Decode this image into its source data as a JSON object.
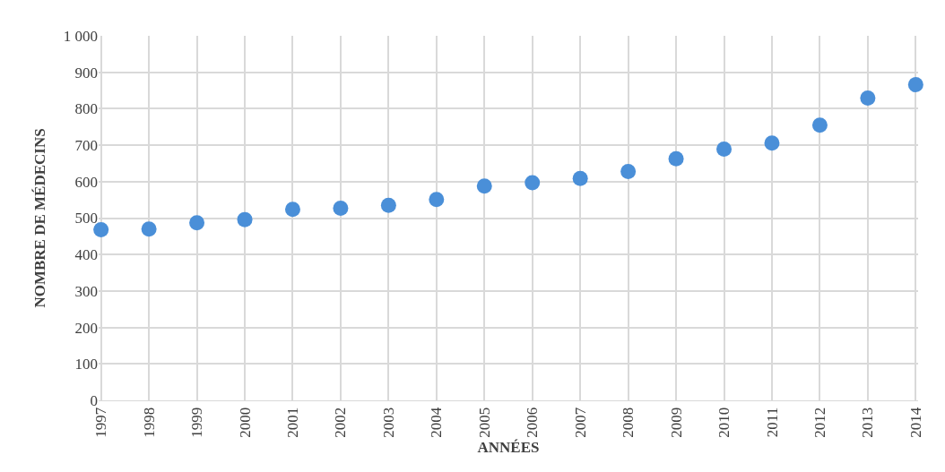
{
  "chart_data": {
    "type": "scatter",
    "xlabel": "ANNÉES",
    "ylabel": "NOMBRE DE MÉDECINS",
    "categories": [
      "1997",
      "1998",
      "1999",
      "2000",
      "2001",
      "2002",
      "2003",
      "2004",
      "2005",
      "2006",
      "2007",
      "2008",
      "2009",
      "2010",
      "2011",
      "2012",
      "2013",
      "2014"
    ],
    "series": [
      {
        "color": "#4a8fd8",
        "values": [
          468,
          470,
          487,
          496,
          524,
          527,
          535,
          551,
          588,
          597,
          609,
          628,
          663,
          689,
          706,
          755,
          829,
          866
        ]
      }
    ],
    "ylim": [
      0,
      1000
    ],
    "yticks": [
      0,
      100,
      200,
      300,
      400,
      500,
      600,
      700,
      800,
      900,
      {
        "value": 1000,
        "label": "1 000"
      }
    ],
    "grid": true,
    "marker": "circle"
  }
}
